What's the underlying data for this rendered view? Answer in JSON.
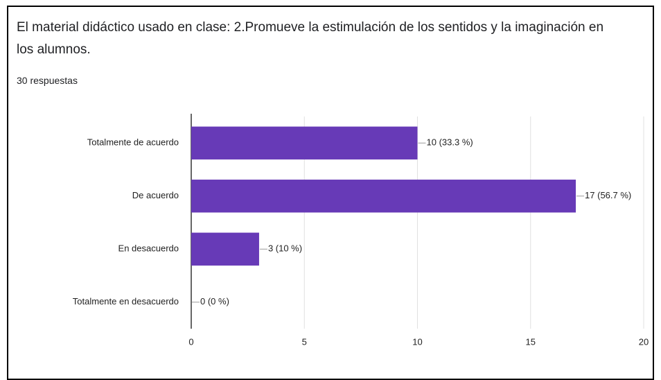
{
  "chart_data": {
    "type": "bar",
    "orientation": "horizontal",
    "title": "El material didáctico usado en clase: 2.Promueve la estimulación de los sentidos y la imaginación en los alumnos.",
    "subtitle": "30 respuestas",
    "categories": [
      "Totalmente de acuerdo",
      "De acuerdo",
      "En desacuerdo",
      "Totalmente en desacuerdo"
    ],
    "values": [
      10,
      17,
      3,
      0
    ],
    "value_labels": [
      "10 (33.3 %)",
      "17 (56.7 %)",
      "3 (10 %)",
      "0 (0 %)"
    ],
    "color": "#673ab7",
    "xlim": [
      0,
      20
    ],
    "xticks": [
      0,
      5,
      10,
      15,
      20
    ],
    "grid": true
  }
}
